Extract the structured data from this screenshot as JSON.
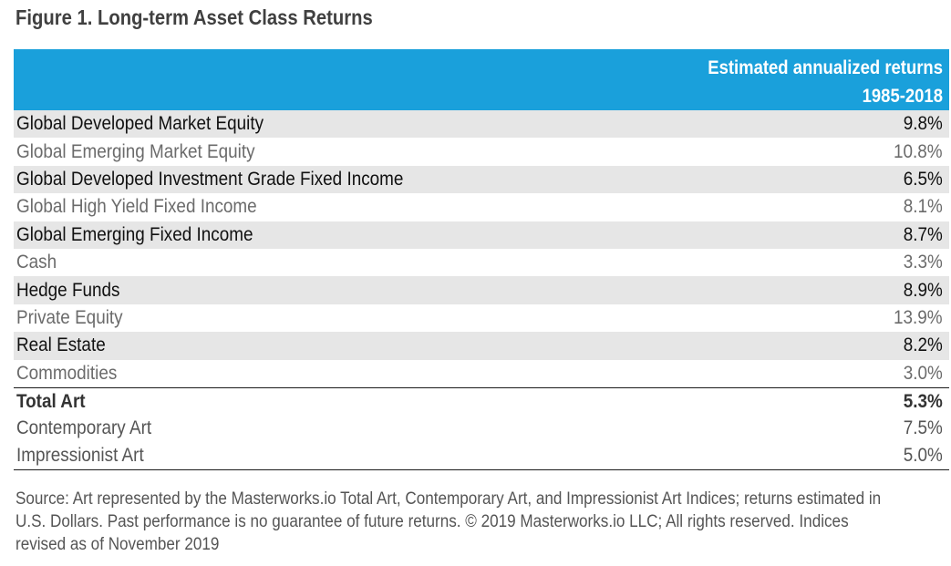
{
  "title": "Figure 1. Long-term Asset Class Returns",
  "colors": {
    "header_bg": "#1aa0db",
    "row_shade": "#e6e6e6"
  },
  "chart_data": {
    "type": "table",
    "header": [
      "Estimated annualized returns",
      "1985-2018"
    ],
    "rows": [
      {
        "name": "Global Developed Market Equity",
        "value": "9.8%"
      },
      {
        "name": "Global Emerging Market Equity",
        "value": "10.8%"
      },
      {
        "name": "Global Developed Investment Grade Fixed Income",
        "value": "6.5%"
      },
      {
        "name": "Global High Yield Fixed Income",
        "value": "8.1%"
      },
      {
        "name": "Global Emerging Fixed Income",
        "value": "8.7%"
      },
      {
        "name": "Cash",
        "value": "3.3%"
      },
      {
        "name": "Hedge Funds",
        "value": "8.9%"
      },
      {
        "name": "Private Equity",
        "value": "13.9%"
      },
      {
        "name": "Real Estate",
        "value": "8.2%"
      },
      {
        "name": "Commodities",
        "value": "3.0%"
      },
      {
        "name": "Total Art",
        "value": "5.3%"
      },
      {
        "name": "Contemporary Art",
        "value": "7.5%"
      },
      {
        "name": "Impressionist Art",
        "value": "5.0%"
      }
    ]
  },
  "source": "Source: Art represented by the Masterworks.io Total Art, Contemporary Art, and Impressionist Art Indices; returns estimated in U.S. Dollars. Past performance is no guarantee of future returns. © 2019 Masterworks.io LLC; All rights reserved. Indices revised as of November 2019"
}
